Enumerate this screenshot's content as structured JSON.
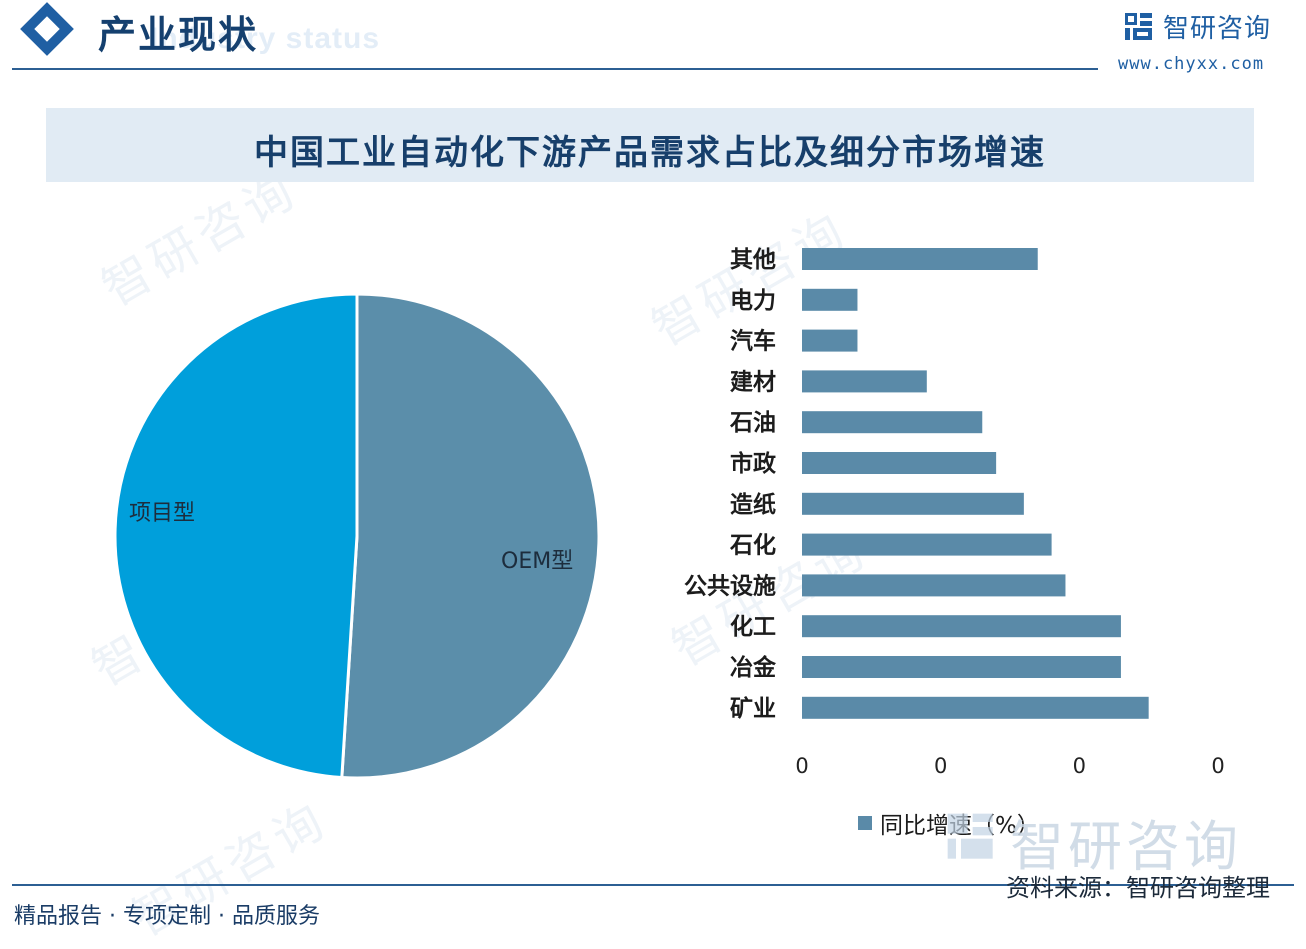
{
  "header": {
    "title": "产业现状",
    "subtitle": "Industry status",
    "brand_name": "智研咨询",
    "brand_url": "www.chyxx.com"
  },
  "chart_title": "中国工业自动化下游产品需求占比及细分市场增速",
  "colors": {
    "pie_project": "#009fdb",
    "pie_oem": "#5b8eaa",
    "bar": "#5a8aa8",
    "header_blue": "#1f5fa3"
  },
  "chart_data": [
    {
      "type": "pie",
      "labels": [
        "项目型",
        "OEM型"
      ],
      "values": [
        49,
        51
      ]
    },
    {
      "type": "bar",
      "orientation": "horizontal",
      "categories": [
        "其他",
        "电力",
        "汽车",
        "建材",
        "石油",
        "市政",
        "造纸",
        "石化",
        "公共设施",
        "化工",
        "冶金",
        "矿业"
      ],
      "series": [
        {
          "name": "同比增速（%）",
          "values": [
            8.5,
            2.0,
            2.0,
            4.5,
            6.5,
            7.0,
            8.0,
            9.0,
            9.5,
            11.5,
            11.5,
            12.5
          ]
        }
      ],
      "xticks": [
        "0",
        "0",
        "0",
        "0"
      ],
      "xlim": [
        0,
        15
      ],
      "grid": false,
      "legend": "bottom"
    }
  ],
  "legend_label": "同比增速（%）",
  "watermark": "智研咨询",
  "footer": {
    "left": "精品报告 · 专项定制 · 品质服务",
    "source": "资料来源：智研咨询整理"
  }
}
